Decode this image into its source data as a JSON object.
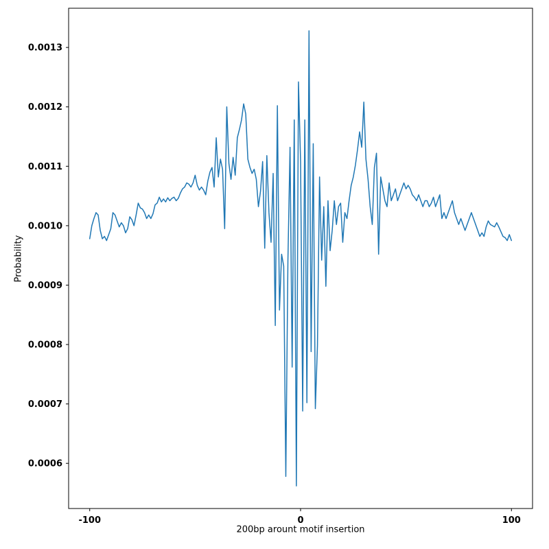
{
  "chart_data": {
    "type": "line",
    "title": "",
    "xlabel": "200bp arount motif insertion",
    "ylabel": "Probability",
    "x_start": -100,
    "x_step": 1,
    "xlim": [
      -110,
      110
    ],
    "ylim": [
      0.000524,
      0.001366
    ],
    "grid": false,
    "legend": "none",
    "line_color": "#1f77b4",
    "spine_color": "#000000",
    "xticks": {
      "values": [
        -100,
        0,
        100
      ],
      "labels": [
        "-100",
        "0",
        "100"
      ]
    },
    "yticks": {
      "values": [
        0.0006,
        0.0007,
        0.0008,
        0.0009,
        0.001,
        0.0011,
        0.0012,
        0.0013
      ],
      "labels": [
        "0.0006",
        "0.0007",
        "0.0008",
        "0.0009",
        "0.0010",
        "0.0011",
        "0.0012",
        "0.0013"
      ]
    },
    "values": [
      0.000978,
      0.001,
      0.001012,
      0.001022,
      0.001018,
      0.000992,
      0.000978,
      0.000982,
      0.000975,
      0.000985,
      0.000995,
      0.001022,
      0.001018,
      0.001008,
      0.000998,
      0.001005,
      0.001,
      0.000988,
      0.000995,
      0.001015,
      0.00101,
      0.001,
      0.001018,
      0.001038,
      0.00103,
      0.001028,
      0.001022,
      0.001012,
      0.001018,
      0.001012,
      0.00102,
      0.001035,
      0.001038,
      0.001048,
      0.00104,
      0.001045,
      0.00104,
      0.001047,
      0.001042,
      0.001046,
      0.001048,
      0.001042,
      0.001046,
      0.001055,
      0.001062,
      0.001065,
      0.001072,
      0.00107,
      0.001065,
      0.001072,
      0.001085,
      0.001068,
      0.00106,
      0.001065,
      0.00106,
      0.001052,
      0.001075,
      0.00109,
      0.001098,
      0.001065,
      0.001148,
      0.001082,
      0.001112,
      0.001095,
      0.000995,
      0.0012,
      0.001105,
      0.001078,
      0.001115,
      0.001085,
      0.001148,
      0.001162,
      0.001178,
      0.001205,
      0.001188,
      0.001112,
      0.001098,
      0.001088,
      0.001095,
      0.001078,
      0.001032,
      0.001058,
      0.001108,
      0.000962,
      0.001118,
      0.001022,
      0.000972,
      0.001088,
      0.000832,
      0.001202,
      0.000858,
      0.000952,
      0.000932,
      0.000578,
      0.000942,
      0.001132,
      0.000762,
      0.001178,
      0.000562,
      0.001242,
      0.001108,
      0.000688,
      0.001178,
      0.000702,
      0.001328,
      0.000788,
      0.001138,
      0.000692,
      0.000798,
      0.001082,
      0.000942,
      0.001032,
      0.000898,
      0.001042,
      0.000958,
      0.000992,
      0.001042,
      0.001002,
      0.001032,
      0.001038,
      0.000972,
      0.001022,
      0.001012,
      0.001042,
      0.001068,
      0.001082,
      0.001102,
      0.001128,
      0.001158,
      0.001132,
      0.001208,
      0.001112,
      0.001078,
      0.001032,
      0.001002,
      0.001098,
      0.001122,
      0.000952,
      0.001082,
      0.001062,
      0.001042,
      0.001032,
      0.001072,
      0.001042,
      0.001052,
      0.001062,
      0.001042,
      0.001052,
      0.001062,
      0.001072,
      0.001062,
      0.001068,
      0.001062,
      0.001052,
      0.001048,
      0.001042,
      0.001052,
      0.001042,
      0.001032,
      0.001042,
      0.001042,
      0.001032,
      0.001038,
      0.001048,
      0.001032,
      0.001042,
      0.001052,
      0.001012,
      0.001022,
      0.001012,
      0.001022,
      0.001032,
      0.001042,
      0.001022,
      0.001012,
      0.001002,
      0.001012,
      0.001002,
      0.000992,
      0.001002,
      0.001012,
      0.001022,
      0.001012,
      0.001002,
      0.000992,
      0.000982,
      0.000988,
      0.000982,
      0.000998,
      0.001008,
      0.001002,
      0.001,
      0.000998,
      0.001005,
      0.000998,
      0.00099,
      0.000982,
      0.00098,
      0.000975,
      0.000985,
      0.000975
    ]
  }
}
